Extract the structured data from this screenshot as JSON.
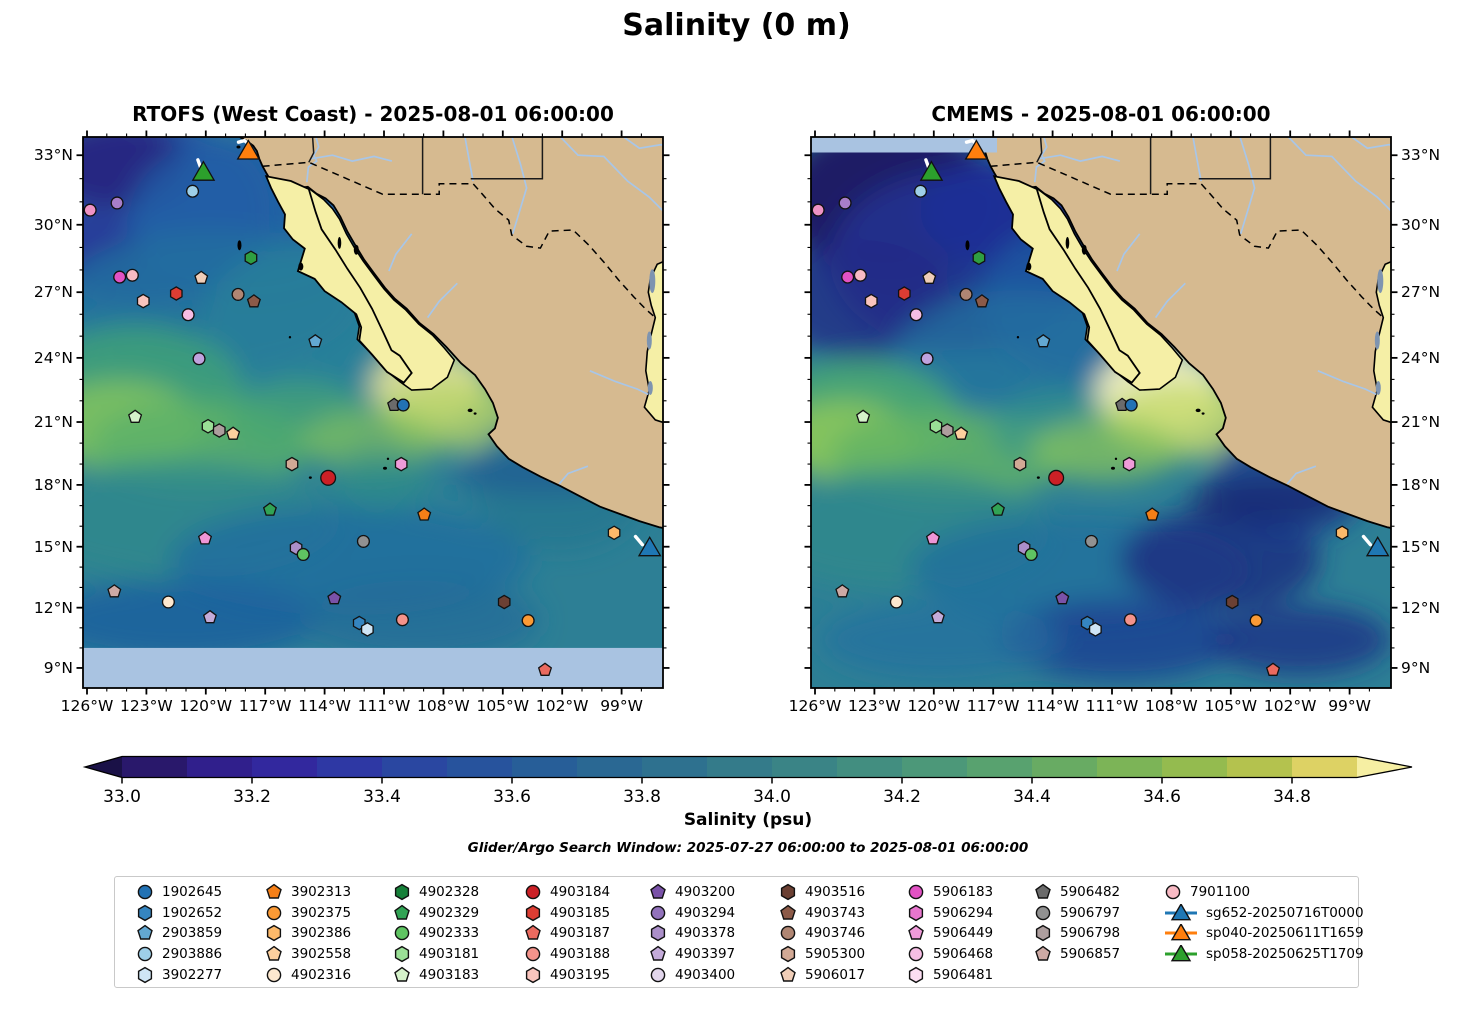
{
  "figure_title": "Salinity (0 m)",
  "panels": [
    {
      "id": "rtofs",
      "title": "RTOFS (West Coast) - 2025-08-01 06:00:00",
      "no_data": "no model data south of 10°N (light blue band)"
    },
    {
      "id": "cmems",
      "title": "CMEMS - 2025-08-01 06:00:00",
      "no_data": "no model data in band north of ~33.1°N west of the coast (light blue band)"
    }
  ],
  "axes": {
    "lon_ticks": [
      "126°W",
      "123°W",
      "120°W",
      "117°W",
      "114°W",
      "111°W",
      "108°W",
      "105°W",
      "102°W",
      "99°W"
    ],
    "lon_tick_values": [
      -126,
      -123,
      -120,
      -117,
      -114,
      -111,
      -108,
      -105,
      -102,
      -99
    ],
    "lat_ticks": [
      "33°N",
      "30°N",
      "27°N",
      "24°N",
      "21°N",
      "18°N",
      "15°N",
      "12°N",
      "9°N"
    ],
    "lat_tick_values": [
      33,
      30,
      27,
      24,
      21,
      18,
      15,
      12,
      9
    ]
  },
  "colorbar": {
    "label": "Salinity (psu)",
    "subtitle": "Glider/Argo Search Window: 2025-07-27 06:00:00 to 2025-08-01 06:00:00",
    "tick_labels": [
      "33.0",
      "33.2",
      "33.4",
      "33.6",
      "33.8",
      "34.0",
      "34.2",
      "34.4",
      "34.6",
      "34.8"
    ],
    "tick_values": [
      33.0,
      33.2,
      33.4,
      33.6,
      33.8,
      34.0,
      34.2,
      34.4,
      34.6,
      34.8
    ],
    "vmin": 33.0,
    "vmax": 34.9,
    "extend": "both",
    "segment_colors": [
      "#29186b",
      "#301f8c",
      "#32289e",
      "#2e38a4",
      "#2a47a1",
      "#27539d",
      "#275e98",
      "#2a6893",
      "#2e718f",
      "#347b8a",
      "#3a8486",
      "#428e80",
      "#4c9879",
      "#58a26f",
      "#68ab63",
      "#7cb457",
      "#94bb4f",
      "#b4c24e",
      "#ddd264"
    ],
    "extend_low_color": "#1a1147",
    "extend_high_color": "#f6efa3"
  },
  "legend": {
    "floats": [
      {
        "id": "1902645",
        "shape": "circle",
        "color": "#2272b4"
      },
      {
        "id": "1902652",
        "shape": "hexagon",
        "color": "#3585c0"
      },
      {
        "id": "2903859",
        "shape": "pentagon",
        "color": "#63a8d2"
      },
      {
        "id": "2903886",
        "shape": "circle",
        "color": "#9ecfe8"
      },
      {
        "id": "3902277",
        "shape": "hexagon",
        "color": "#cfe5f5"
      },
      {
        "id": "3902313",
        "shape": "pentagon",
        "color": "#f57f17"
      },
      {
        "id": "3902375",
        "shape": "circle",
        "color": "#fb9a35"
      },
      {
        "id": "3902386",
        "shape": "hexagon",
        "color": "#fcb96a"
      },
      {
        "id": "3902558",
        "shape": "pentagon",
        "color": "#fdd09e"
      },
      {
        "id": "4902316",
        "shape": "circle",
        "color": "#fde8cf"
      },
      {
        "id": "4902328",
        "shape": "hexagon",
        "color": "#168039"
      },
      {
        "id": "4902329",
        "shape": "pentagon",
        "color": "#31a354"
      },
      {
        "id": "4902333",
        "shape": "circle",
        "color": "#5fc462"
      },
      {
        "id": "4903181",
        "shape": "hexagon",
        "color": "#9adf96"
      },
      {
        "id": "4903183",
        "shape": "pentagon",
        "color": "#d5f2ca"
      },
      {
        "id": "4903184",
        "shape": "circle",
        "color": "#cb2026"
      },
      {
        "id": "4903185",
        "shape": "hexagon",
        "color": "#dc3d33"
      },
      {
        "id": "4903187",
        "shape": "pentagon",
        "color": "#ea6a5f"
      },
      {
        "id": "4903188",
        "shape": "circle",
        "color": "#f4938b"
      },
      {
        "id": "4903195",
        "shape": "hexagon",
        "color": "#fac4bd"
      },
      {
        "id": "4903200",
        "shape": "pentagon",
        "color": "#7a52a8"
      },
      {
        "id": "4903294",
        "shape": "circle",
        "color": "#9272bb"
      },
      {
        "id": "4903378",
        "shape": "hexagon",
        "color": "#ab8fc9"
      },
      {
        "id": "4903397",
        "shape": "pentagon",
        "color": "#c4abd9"
      },
      {
        "id": "4903400",
        "shape": "circle",
        "color": "#e2d6ec"
      },
      {
        "id": "4903516",
        "shape": "hexagon",
        "color": "#6b4033"
      },
      {
        "id": "4903743",
        "shape": "pentagon",
        "color": "#8c5a48"
      },
      {
        "id": "4903746",
        "shape": "circle",
        "color": "#b08673"
      },
      {
        "id": "5905300",
        "shape": "hexagon",
        "color": "#d2a995"
      },
      {
        "id": "5906017",
        "shape": "pentagon",
        "color": "#f0ceb8"
      },
      {
        "id": "5906183",
        "shape": "circle",
        "color": "#e252c4"
      },
      {
        "id": "5906294",
        "shape": "hexagon",
        "color": "#e876ce"
      },
      {
        "id": "5906449",
        "shape": "pentagon",
        "color": "#ef9bd9"
      },
      {
        "id": "5906468",
        "shape": "circle",
        "color": "#f6bde4"
      },
      {
        "id": "5906481",
        "shape": "hexagon",
        "color": "#fcdef2"
      },
      {
        "id": "5906482",
        "shape": "pentagon",
        "color": "#6b6b6b"
      },
      {
        "id": "5906797",
        "shape": "circle",
        "color": "#919191"
      },
      {
        "id": "5906798",
        "shape": "hexagon",
        "color": "#ad9e9e"
      },
      {
        "id": "5906857",
        "shape": "pentagon",
        "color": "#cdaaa5"
      },
      {
        "id": "7901100",
        "shape": "circle",
        "color": "#f8bac4"
      }
    ],
    "gliders": [
      {
        "id": "sg652-20250716T0000",
        "color": "#1f77b4"
      },
      {
        "id": "sp040-20250611T1659",
        "color": "#ff7f0e"
      },
      {
        "id": "sp058-20250625T1709",
        "color": "#2ca02c"
      }
    ]
  },
  "markers": [
    {
      "shape": "circle",
      "color": "#9ecfe8",
      "lon": -120.67,
      "lat": 31.46
    },
    {
      "shape": "circle",
      "color": "#ef93c5",
      "lon": -125.84,
      "lat": 30.64
    },
    {
      "shape": "circle",
      "color": "#a87ec9",
      "lon": -124.48,
      "lat": 30.95
    },
    {
      "shape": "hexagon",
      "color": "#2f9e41",
      "lon": -117.72,
      "lat": 28.54
    },
    {
      "shape": "circle",
      "color": "#e252c4",
      "lon": -124.35,
      "lat": 27.68
    },
    {
      "shape": "circle",
      "color": "#f8bac4",
      "lon": -123.71,
      "lat": 27.76
    },
    {
      "shape": "pentagon",
      "color": "#f0ceb8",
      "lon": -120.23,
      "lat": 27.64
    },
    {
      "shape": "hexagon",
      "color": "#dc3d33",
      "lon": -121.49,
      "lat": 26.94
    },
    {
      "shape": "hexagon",
      "color": "#fac4bd",
      "lon": -123.16,
      "lat": 26.6
    },
    {
      "shape": "circle",
      "color": "#b08673",
      "lon": -118.37,
      "lat": 26.9
    },
    {
      "shape": "pentagon",
      "color": "#8c5a48",
      "lon": -117.57,
      "lat": 26.58
    },
    {
      "shape": "circle",
      "color": "#f6bde4",
      "lon": -120.89,
      "lat": 25.98
    },
    {
      "shape": "pentagon",
      "color": "#63a8d2",
      "lon": -114.47,
      "lat": 24.76
    },
    {
      "shape": "circle",
      "color": "#c0a3de",
      "lon": -120.34,
      "lat": 23.96
    },
    {
      "shape": "pentagon",
      "color": "#6b6b6b",
      "lon": -110.49,
      "lat": 21.8
    },
    {
      "shape": "circle",
      "color": "#2272b4",
      "lon": -110.03,
      "lat": 21.8
    },
    {
      "shape": "pentagon",
      "color": "#d5f2ca",
      "lon": -123.57,
      "lat": 21.24
    },
    {
      "shape": "hexagon",
      "color": "#9adf96",
      "lon": -119.89,
      "lat": 20.8
    },
    {
      "shape": "hexagon",
      "color": "#ad9e9e",
      "lon": -119.32,
      "lat": 20.6
    },
    {
      "shape": "pentagon",
      "color": "#fdd09e",
      "lon": -118.62,
      "lat": 20.44
    },
    {
      "shape": "hexagon",
      "color": "#d2a995",
      "lon": -115.65,
      "lat": 19.0
    },
    {
      "shape": "circle",
      "color": "#cb2026",
      "lon": -113.82,
      "lat": 18.34,
      "size": 1.25
    },
    {
      "shape": "hexagon",
      "color": "#ef9bd9",
      "lon": -110.13,
      "lat": 19.0
    },
    {
      "shape": "pentagon",
      "color": "#31a354",
      "lon": -116.76,
      "lat": 16.8
    },
    {
      "shape": "pentagon",
      "color": "#f57f17",
      "lon": -108.97,
      "lat": 16.56
    },
    {
      "shape": "pentagon",
      "color": "#ee96d6",
      "lon": -120.04,
      "lat": 15.4
    },
    {
      "shape": "hexagon",
      "color": "#ab8fc9",
      "lon": -115.44,
      "lat": 14.94
    },
    {
      "shape": "circle",
      "color": "#5fc462",
      "lon": -115.08,
      "lat": 14.62
    },
    {
      "shape": "circle",
      "color": "#919191",
      "lon": -112.04,
      "lat": 15.26
    },
    {
      "shape": "pentagon",
      "color": "#cdaaa5",
      "lon": -124.62,
      "lat": 12.8
    },
    {
      "shape": "circle",
      "color": "#fde8cf",
      "lon": -121.89,
      "lat": 12.28
    },
    {
      "shape": "pentagon",
      "color": "#c4abd9",
      "lon": -119.79,
      "lat": 11.52
    },
    {
      "shape": "pentagon",
      "color": "#7a52a8",
      "lon": -113.51,
      "lat": 12.46
    },
    {
      "shape": "hexagon",
      "color": "#3585c0",
      "lon": -112.25,
      "lat": 11.24
    },
    {
      "shape": "hexagon",
      "color": "#cfe5f5",
      "lon": -111.84,
      "lat": 10.92
    },
    {
      "shape": "circle",
      "color": "#f4938b",
      "lon": -110.07,
      "lat": 11.4
    },
    {
      "shape": "hexagon",
      "color": "#6b4033",
      "lon": -104.93,
      "lat": 12.28
    },
    {
      "shape": "circle",
      "color": "#fb9a35",
      "lon": -103.72,
      "lat": 11.36
    },
    {
      "shape": "pentagon",
      "color": "#ea6a5f",
      "lon": -102.87,
      "lat": 8.9
    },
    {
      "shape": "hexagon",
      "color": "#fcb96a",
      "lon": -99.38,
      "lat": 15.68
    },
    {
      "shape": "triangle",
      "color": "#1f77b4",
      "lon": -97.58,
      "lat": 14.86,
      "track": [
        [
          -98.3,
          15.5
        ],
        [
          -97.95,
          15.1
        ]
      ]
    },
    {
      "shape": "triangle",
      "color": "#ff7f0e",
      "lon": -117.85,
      "lat": 33.1,
      "track": [
        [
          -118.35,
          33.55
        ],
        [
          -118.05,
          33.62
        ],
        [
          -117.8,
          33.45
        ]
      ]
    },
    {
      "shape": "triangle",
      "color": "#2ca02c",
      "lon": -120.12,
      "lat": 32.2,
      "track": [
        [
          -120.4,
          32.8
        ],
        [
          -120.25,
          32.45
        ]
      ]
    }
  ],
  "colors": {
    "land": "#d6ba90",
    "baja_and_gulf": "#f5efa6",
    "no_data_band": "#a9c3e1",
    "river": "#a8c6e8",
    "ocean_base": "#2d7f95",
    "coastline": "#000000"
  },
  "chart_data": {
    "type": "heatmap",
    "subtype": "geographic sea-surface salinity fields, two side-by-side map panels with shared colorbar",
    "panels": [
      "RTOFS (West Coast) - 2025-08-01 06:00:00",
      "CMEMS - 2025-08-01 06:00:00"
    ],
    "extent": {
      "lon": [
        -126.2,
        -96.9
      ],
      "lat": [
        8.0,
        33.85
      ]
    },
    "colorbar": {
      "label": "Salinity (psu)",
      "range": [
        33.0,
        34.9
      ],
      "tick_step": 0.2,
      "ticks": [
        33.0,
        33.2,
        33.4,
        33.6,
        33.8,
        34.0,
        34.2,
        34.4,
        34.6,
        34.8
      ],
      "extend": "both",
      "n_segments": 19
    },
    "search_window": "2025-07-27 06:00:00 to 2025-08-01 06:00:00",
    "platforms": {
      "argo_floats": 40,
      "gliders": 3
    },
    "notes": "Identical Argo/glider positions plotted on both panels (see markers). RTOFS panel: no-data band south of 10N. CMEMS panel: no-data band north of ~33.1N. Low salinity (dark blue/purple) offshore California; high salinity (pale yellow) in Gulf of California and Gulf of Mexico strip at right edge."
  }
}
